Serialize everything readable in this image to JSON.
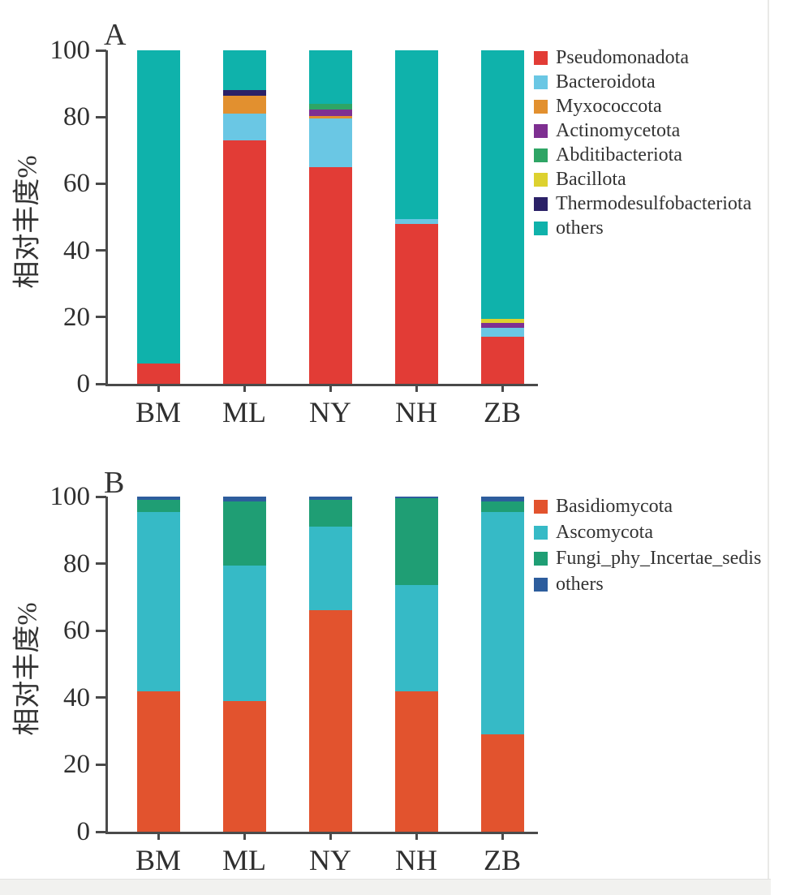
{
  "chart_data": [
    {
      "type": "bar",
      "stacked": true,
      "title": "A",
      "ylabel": "相对丰度%",
      "ylim": [
        0,
        100
      ],
      "yticks": [
        "0",
        "20",
        "40",
        "60",
        "80",
        "100"
      ],
      "ytick_values": [
        0,
        20,
        40,
        60,
        80,
        100
      ],
      "grid": false,
      "legend_position": "right",
      "categories": [
        "BM",
        "ML",
        "NY",
        "NH",
        "ZB"
      ],
      "series": [
        {
          "name": "Pseudomonadota",
          "color": "#e23c36",
          "values": [
            6,
            73,
            65,
            48,
            14
          ]
        },
        {
          "name": "Bacteroidota",
          "color": "#6ac7e4",
          "values": [
            0,
            8,
            14.5,
            1.5,
            2.8
          ]
        },
        {
          "name": "Myxococcota",
          "color": "#e2902f",
          "values": [
            0,
            5.5,
            0.8,
            0,
            0
          ]
        },
        {
          "name": "Actinomycetota",
          "color": "#7e2f91",
          "values": [
            0,
            0,
            2,
            0,
            1.5
          ]
        },
        {
          "name": "Abditibacteriota",
          "color": "#2ea565",
          "values": [
            0,
            0,
            1.7,
            0,
            0
          ]
        },
        {
          "name": "Bacillota",
          "color": "#ddd12f",
          "values": [
            0,
            0,
            0,
            0,
            1.2
          ]
        },
        {
          "name": "Thermodesulfobacteriota",
          "color": "#2b2167",
          "values": [
            0,
            1.5,
            0,
            0,
            0
          ]
        },
        {
          "name": "others",
          "color": "#0fb2ab",
          "values": [
            94,
            12,
            16,
            50.5,
            80.5
          ]
        }
      ]
    },
    {
      "type": "bar",
      "stacked": true,
      "title": "B",
      "ylabel": "相对丰度%",
      "ylim": [
        0,
        100
      ],
      "yticks": [
        "0",
        "20",
        "40",
        "60",
        "80",
        "100"
      ],
      "ytick_values": [
        0,
        20,
        40,
        60,
        80,
        100
      ],
      "grid": false,
      "legend_position": "right",
      "categories": [
        "BM",
        "ML",
        "NY",
        "NH",
        "ZB"
      ],
      "series": [
        {
          "name": "Basidiomycota",
          "color": "#e2532e",
          "values": [
            42,
            39,
            66,
            42,
            29
          ]
        },
        {
          "name": "Ascomycota",
          "color": "#36bac6",
          "values": [
            53.5,
            40.5,
            25,
            31.5,
            66.5
          ]
        },
        {
          "name": "Fungi_phy_Incertae_sedis",
          "color": "#1f9e74",
          "values": [
            3.5,
            19,
            8,
            26,
            3
          ]
        },
        {
          "name": "others",
          "color": "#2d5d9d",
          "values": [
            1,
            1.5,
            1,
            0.5,
            1.5
          ]
        }
      ]
    }
  ]
}
